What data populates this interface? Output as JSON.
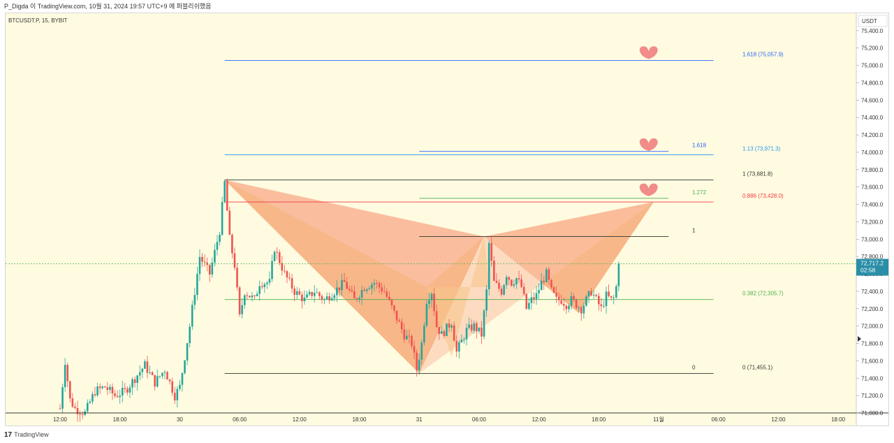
{
  "header": {
    "text": "P_Digda 이 TradingView.com, 10월 31, 2024 19:57 UTC+9 에 퍼블리쉬했음"
  },
  "footer": {
    "brand": "TradingView",
    "logo_glyph": "17"
  },
  "symbol": "BTCUSDT.P, 15, BYBIT",
  "axis_currency": "USDT",
  "colors": {
    "bg": "#fffbe0",
    "up": "#26a69a",
    "down": "#ef5350",
    "price_tag": "#2a8ea8"
  },
  "chart_data": {
    "type": "candlestick",
    "ylim": [
      71000,
      75600
    ],
    "yticks": [
      71000,
      71200,
      71400,
      71600,
      71800,
      72000,
      72200,
      72400,
      72600,
      72800,
      73000,
      73200,
      73400,
      73600,
      73800,
      74000,
      74200,
      74400,
      74600,
      74800,
      75000,
      75200,
      75400
    ],
    "xticks": [
      {
        "t": 0,
        "label": "12:00"
      },
      {
        "t": 24,
        "label": "18:00"
      },
      {
        "t": 48,
        "label": "30"
      },
      {
        "t": 72,
        "label": "06:00"
      },
      {
        "t": 96,
        "label": "12:00"
      },
      {
        "t": 120,
        "label": "18:00"
      },
      {
        "t": 144,
        "label": "31"
      },
      {
        "t": 168,
        "label": "06:00"
      },
      {
        "t": 192,
        "label": "12:00"
      },
      {
        "t": 216,
        "label": "18:00"
      },
      {
        "t": 240,
        "label": "11월"
      },
      {
        "t": 264,
        "label": "06:00"
      },
      {
        "t": 288,
        "label": "12:00"
      },
      {
        "t": 312,
        "label": "18:00"
      }
    ],
    "last_price": "72,717.2",
    "countdown": "02:58",
    "current_price_value": 72717.2,
    "candle_anchors": [
      [
        0,
        71050
      ],
      [
        2,
        71600
      ],
      [
        4,
        71150
      ],
      [
        6,
        71050
      ],
      [
        10,
        71000
      ],
      [
        14,
        71250
      ],
      [
        18,
        71300
      ],
      [
        22,
        71200
      ],
      [
        26,
        71250
      ],
      [
        30,
        71400
      ],
      [
        34,
        71550
      ],
      [
        38,
        71350
      ],
      [
        42,
        71500
      ],
      [
        46,
        71200
      ],
      [
        48,
        71300
      ],
      [
        52,
        72000
      ],
      [
        56,
        72800
      ],
      [
        60,
        72600
      ],
      [
        64,
        73100
      ],
      [
        66,
        73650
      ],
      [
        68,
        73000
      ],
      [
        70,
        72700
      ],
      [
        72,
        72100
      ],
      [
        74,
        72400
      ],
      [
        78,
        72300
      ],
      [
        80,
        72500
      ],
      [
        84,
        72500
      ],
      [
        86,
        72900
      ],
      [
        90,
        72600
      ],
      [
        94,
        72400
      ],
      [
        98,
        72300
      ],
      [
        102,
        72400
      ],
      [
        106,
        72300
      ],
      [
        110,
        72400
      ],
      [
        114,
        72500
      ],
      [
        118,
        72300
      ],
      [
        122,
        72450
      ],
      [
        126,
        72500
      ],
      [
        130,
        72400
      ],
      [
        134,
        72150
      ],
      [
        138,
        71900
      ],
      [
        141,
        71800
      ],
      [
        143,
        71500
      ],
      [
        145,
        71800
      ],
      [
        147,
        72300
      ],
      [
        149,
        72400
      ],
      [
        151,
        72000
      ],
      [
        153,
        71900
      ],
      [
        157,
        72050
      ],
      [
        159,
        71700
      ],
      [
        163,
        71950
      ],
      [
        166,
        72000
      ],
      [
        169,
        71900
      ],
      [
        171,
        72400
      ],
      [
        172,
        72950
      ],
      [
        174,
        72500
      ],
      [
        177,
        72400
      ],
      [
        179,
        72600
      ],
      [
        181,
        72500
      ],
      [
        183,
        72550
      ],
      [
        185,
        72450
      ],
      [
        187,
        72200
      ],
      [
        189,
        72300
      ],
      [
        191,
        72350
      ],
      [
        193,
        72500
      ],
      [
        195,
        72600
      ],
      [
        197,
        72400
      ],
      [
        199,
        72300
      ],
      [
        201,
        72300
      ],
      [
        203,
        72250
      ],
      [
        205,
        72300
      ],
      [
        207,
        72250
      ],
      [
        209,
        72200
      ],
      [
        211,
        72300
      ],
      [
        213,
        72400
      ],
      [
        215,
        72300
      ],
      [
        217,
        72200
      ],
      [
        219,
        72350
      ],
      [
        221,
        72300
      ],
      [
        222,
        72320
      ],
      [
        223,
        72450
      ],
      [
        224,
        72720
      ]
    ],
    "fib_right": {
      "x_start": 66,
      "x_end": 262,
      "levels": [
        {
          "ratio_label": "1.618 (75,057.9)",
          "value": 75057.9,
          "color": "#2962ff"
        },
        {
          "ratio_label": "1.13 (73,971.3)",
          "value": 73971.3,
          "color": "#2196f3"
        },
        {
          "ratio_label": "1 (73,681.8)",
          "value": 73681.8,
          "color": "#333333"
        },
        {
          "ratio_label": "0.886 (73,428.0)",
          "value": 73428.0,
          "color": "#f23645"
        },
        {
          "ratio_label": "0.382 (72,305.7)",
          "value": 72305.7,
          "color": "#4caf50"
        },
        {
          "ratio_label": "0 (71,455.1)",
          "value": 71455.1,
          "color": "#333333"
        }
      ]
    },
    "fib_mid": {
      "x_start": 144,
      "x_end": 244,
      "levels": [
        {
          "label": "1.618",
          "value": 74010,
          "color": "#2962ff"
        },
        {
          "label": "1.272",
          "value": 73470,
          "color": "#4caf50"
        },
        {
          "label": "1",
          "value": 73030,
          "color": "#333333"
        },
        {
          "label": "0",
          "value": 71455.1,
          "color": "#333333"
        }
      ]
    },
    "harmonic": {
      "X": [
        66,
        73681.8
      ],
      "A": [
        144,
        71455.1
      ],
      "B": [
        170,
        73030
      ],
      "C": [
        208,
        72150
      ],
      "D": [
        238,
        73428
      ],
      "inner": [
        [
          147,
          72450
        ],
        [
          157,
          71650
        ],
        [
          170,
          73030
        ],
        [
          172,
          72450
        ]
      ]
    },
    "hearts": [
      {
        "t": 236,
        "value": 75140
      },
      {
        "t": 236,
        "value": 74080
      },
      {
        "t": 236,
        "value": 73560
      }
    ]
  }
}
